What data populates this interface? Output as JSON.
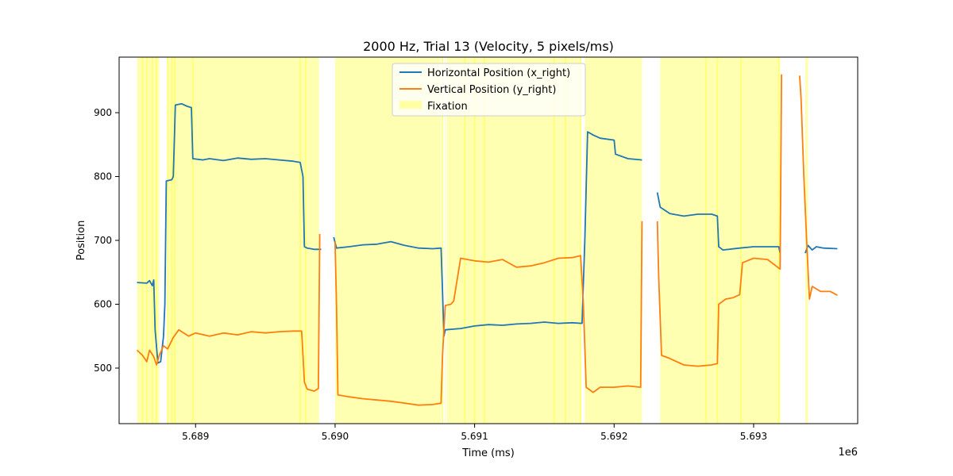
{
  "chart_data": {
    "type": "line",
    "title": "2000 Hz, Trial 13 (Velocity, 5 pixels/ms)",
    "xlabel": "Time (ms)",
    "ylabel": "Position",
    "x_offset_label": "1e6",
    "xlim": [
      5688452,
      5693746
    ],
    "ylim": [
      413,
      987
    ],
    "xticks": [
      {
        "value": 5689000,
        "label": "5.689"
      },
      {
        "value": 5690000,
        "label": "5.690"
      },
      {
        "value": 5691000,
        "label": "5.691"
      },
      {
        "value": 5692000,
        "label": "5.692"
      },
      {
        "value": 5693000,
        "label": "5.693"
      }
    ],
    "yticks": [
      {
        "value": 500,
        "label": "500"
      },
      {
        "value": 600,
        "label": "600"
      },
      {
        "value": 700,
        "label": "700"
      },
      {
        "value": 800,
        "label": "800"
      },
      {
        "value": 900,
        "label": "900"
      }
    ],
    "legend_position": "upper center",
    "colors": {
      "x_right": "#1f77b4",
      "y_right": "#ff7f0e",
      "fixation": "#ffff66"
    },
    "series": [
      {
        "name": "Horizontal Position (x_right)",
        "segments": [
          [
            [
              5688580,
              634
            ],
            [
              5688650,
              633
            ],
            [
              5688670,
              637
            ],
            [
              5688690,
              629
            ],
            [
              5688700,
              638
            ],
            [
              5688710,
              560
            ],
            [
              5688730,
              508
            ],
            [
              5688750,
              510
            ],
            [
              5688770,
              550
            ],
            [
              5688780,
              600
            ],
            [
              5688790,
              793
            ],
            [
              5688830,
              795
            ],
            [
              5688840,
              800
            ],
            [
              5688855,
              912
            ],
            [
              5688900,
              914
            ],
            [
              5688940,
              910
            ],
            [
              5688970,
              908
            ],
            [
              5688980,
              828
            ],
            [
              5689050,
              826
            ],
            [
              5689100,
              828
            ],
            [
              5689200,
              825
            ],
            [
              5689300,
              829
            ],
            [
              5689400,
              827
            ],
            [
              5689500,
              828
            ],
            [
              5689600,
              826
            ],
            [
              5689700,
              824
            ],
            [
              5689750,
              822
            ],
            [
              5689770,
              800
            ],
            [
              5689780,
              690
            ],
            [
              5689800,
              688
            ],
            [
              5689850,
              686
            ],
            [
              5689900,
              686
            ]
          ],
          [
            [
              5689990,
              705
            ],
            [
              5690010,
              688
            ],
            [
              5690100,
              690
            ],
            [
              5690200,
              693
            ],
            [
              5690300,
              694
            ],
            [
              5690400,
              698
            ],
            [
              5690500,
              692
            ],
            [
              5690600,
              688
            ],
            [
              5690700,
              687
            ],
            [
              5690760,
              688
            ],
            [
              5690770,
              620
            ],
            [
              5690780,
              550
            ],
            [
              5690790,
              560
            ],
            [
              5690900,
              562
            ],
            [
              5691000,
              566
            ],
            [
              5691100,
              568
            ],
            [
              5691200,
              567
            ],
            [
              5691300,
              569
            ],
            [
              5691400,
              570
            ],
            [
              5691500,
              572
            ],
            [
              5691600,
              570
            ],
            [
              5691700,
              571
            ],
            [
              5691770,
              570
            ],
            [
              5691790,
              700
            ],
            [
              5691810,
              870
            ],
            [
              5691850,
              865
            ],
            [
              5691900,
              860
            ],
            [
              5692000,
              857
            ],
            [
              5692010,
              835
            ],
            [
              5692100,
              828
            ],
            [
              5692200,
              826
            ]
          ],
          [
            [
              5692310,
              775
            ],
            [
              5692330,
              752
            ],
            [
              5692400,
              742
            ],
            [
              5692500,
              738
            ],
            [
              5692600,
              741
            ],
            [
              5692700,
              741
            ],
            [
              5692740,
              738
            ],
            [
              5692750,
              690
            ],
            [
              5692780,
              685
            ],
            [
              5692900,
              688
            ],
            [
              5693000,
              690
            ],
            [
              5693100,
              690
            ],
            [
              5693180,
              690
            ],
            [
              5693190,
              680
            ]
          ],
          [
            [
              5693370,
              680
            ],
            [
              5693390,
              692
            ],
            [
              5693420,
              685
            ],
            [
              5693450,
              690
            ],
            [
              5693500,
              688
            ],
            [
              5693600,
              687
            ]
          ]
        ]
      },
      {
        "name": "Vertical Position (y_right)",
        "segments": [
          [
            [
              5688580,
              528
            ],
            [
              5688620,
              520
            ],
            [
              5688650,
              510
            ],
            [
              5688670,
              528
            ],
            [
              5688700,
              518
            ],
            [
              5688720,
              505
            ],
            [
              5688740,
              520
            ],
            [
              5688770,
              535
            ],
            [
              5688800,
              530
            ],
            [
              5688840,
              548
            ],
            [
              5688880,
              560
            ],
            [
              5688950,
              550
            ],
            [
              5689000,
              555
            ],
            [
              5689100,
              550
            ],
            [
              5689200,
              555
            ],
            [
              5689300,
              552
            ],
            [
              5689400,
              557
            ],
            [
              5689500,
              555
            ],
            [
              5689600,
              557
            ],
            [
              5689700,
              558
            ],
            [
              5689760,
              558
            ],
            [
              5689770,
              520
            ],
            [
              5689780,
              478
            ],
            [
              5689800,
              467
            ],
            [
              5689850,
              464
            ],
            [
              5689880,
              468
            ],
            [
              5689890,
              710
            ]
          ],
          [
            [
              5690000,
              698
            ],
            [
              5690010,
              600
            ],
            [
              5690020,
              458
            ],
            [
              5690100,
              455
            ],
            [
              5690200,
              452
            ],
            [
              5690300,
              450
            ],
            [
              5690400,
              448
            ],
            [
              5690500,
              445
            ],
            [
              5690600,
              442
            ],
            [
              5690700,
              443
            ],
            [
              5690760,
              445
            ],
            [
              5690770,
              520
            ],
            [
              5690790,
              598
            ],
            [
              5690830,
              600
            ],
            [
              5690850,
              605
            ],
            [
              5690900,
              672
            ],
            [
              5691000,
              668
            ],
            [
              5691100,
              666
            ],
            [
              5691200,
              670
            ],
            [
              5691300,
              658
            ],
            [
              5691400,
              660
            ],
            [
              5691500,
              665
            ],
            [
              5691600,
              672
            ],
            [
              5691700,
              673
            ],
            [
              5691760,
              676
            ],
            [
              5691780,
              600
            ],
            [
              5691800,
              470
            ],
            [
              5691850,
              462
            ],
            [
              5691900,
              470
            ],
            [
              5692000,
              470
            ],
            [
              5692100,
              472
            ],
            [
              5692190,
              470
            ],
            [
              5692200,
              730
            ]
          ],
          [
            [
              5692310,
              730
            ],
            [
              5692320,
              640
            ],
            [
              5692340,
              520
            ],
            [
              5692400,
              515
            ],
            [
              5692500,
              505
            ],
            [
              5692600,
              503
            ],
            [
              5692700,
              505
            ],
            [
              5692740,
              507
            ],
            [
              5692750,
              600
            ],
            [
              5692800,
              608
            ],
            [
              5692850,
              610
            ],
            [
              5692900,
              615
            ],
            [
              5692920,
              665
            ],
            [
              5693000,
              672
            ],
            [
              5693100,
              670
            ],
            [
              5693190,
              655
            ],
            [
              5693200,
              960
            ]
          ],
          [
            [
              5693330,
              958
            ],
            [
              5693340,
              922
            ],
            [
              5693360,
              800
            ],
            [
              5693380,
              700
            ],
            [
              5693400,
              608
            ],
            [
              5693420,
              628
            ],
            [
              5693480,
              620
            ],
            [
              5693550,
              620
            ],
            [
              5693600,
              614
            ]
          ]
        ]
      }
    ],
    "fixation_label": "Fixation",
    "fixation_intervals": [
      [
        5688580,
        5688740
      ],
      [
        5688800,
        5689885
      ],
      [
        5690000,
        5690760
      ],
      [
        5690785,
        5690790
      ],
      [
        5690800,
        5691760
      ],
      [
        5691790,
        5692200
      ],
      [
        5692330,
        5693190
      ],
      [
        5693370,
        5693390
      ]
    ],
    "fixation_edges": [
      5688620,
      5688650,
      5688690,
      5688720,
      5688800,
      5688830,
      5688850,
      5688980,
      5689750,
      5689790,
      5690770,
      5690930,
      5691000,
      5691070,
      5691570,
      5691650,
      5691760,
      5692660,
      5692740,
      5692910,
      5693180
    ]
  }
}
